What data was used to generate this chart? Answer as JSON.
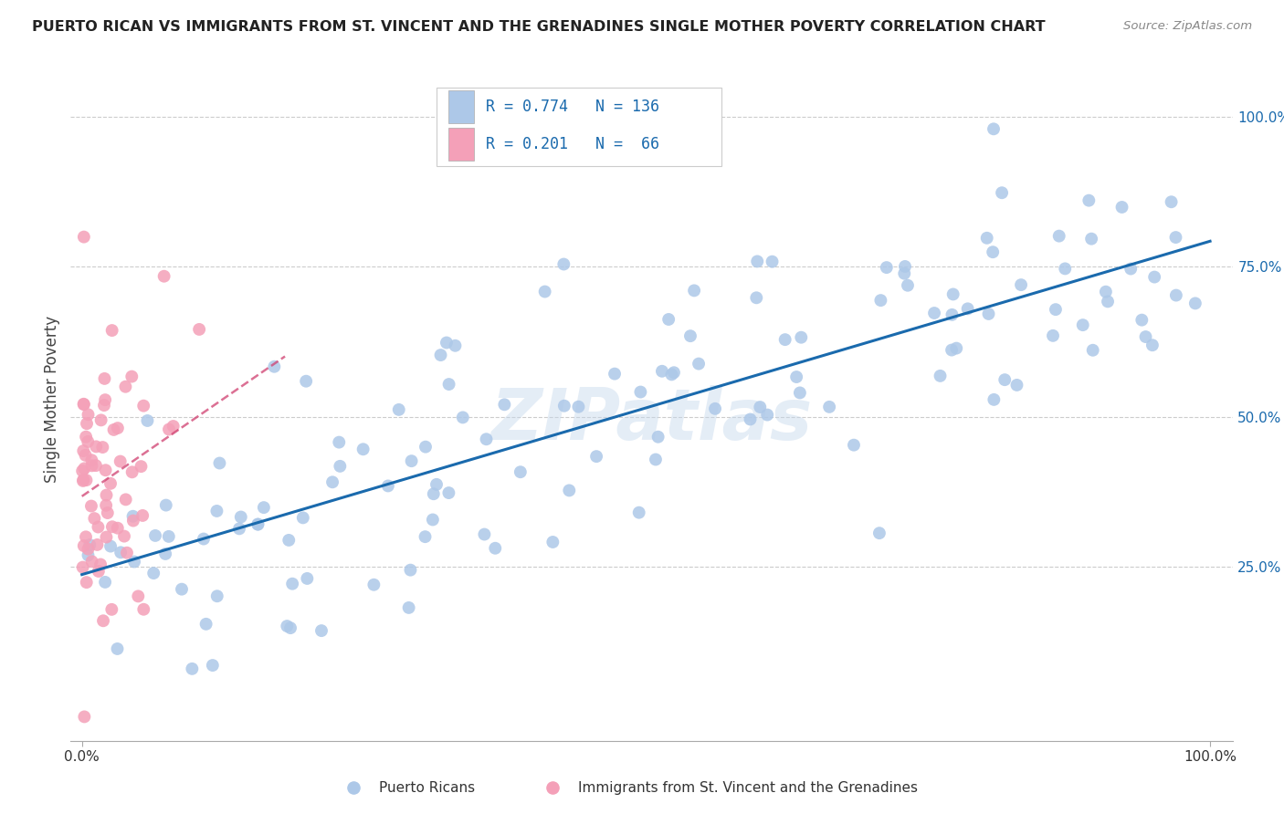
{
  "title": "PUERTO RICAN VS IMMIGRANTS FROM ST. VINCENT AND THE GRENADINES SINGLE MOTHER POVERTY CORRELATION CHART",
  "source": "Source: ZipAtlas.com",
  "ylabel": "Single Mother Poverty",
  "blue_color": "#adc8e8",
  "blue_line_color": "#1a6aad",
  "pink_color": "#f4a0b8",
  "pink_line_color": "#d04070",
  "watermark": "ZIPatlas",
  "blue_r": 0.774,
  "blue_n": 136,
  "pink_r": 0.201,
  "pink_n": 66,
  "legend_blue_r": "R = 0.774",
  "legend_blue_n": "N = 136",
  "legend_pink_r": "R = 0.201",
  "legend_pink_n": "N =  66",
  "legend_label_blue": "Puerto Ricans",
  "legend_label_pink": "Immigrants from St. Vincent and the Grenadines",
  "xmin": 0.0,
  "xmax": 1.0,
  "ymin": 0.0,
  "ymax": 1.0,
  "yticks": [
    0.25,
    0.5,
    0.75,
    1.0
  ],
  "ytick_labels": [
    "25.0%",
    "50.0%",
    "75.0%",
    "100.0%"
  ],
  "xtick_labels": [
    "0.0%",
    "100.0%"
  ]
}
